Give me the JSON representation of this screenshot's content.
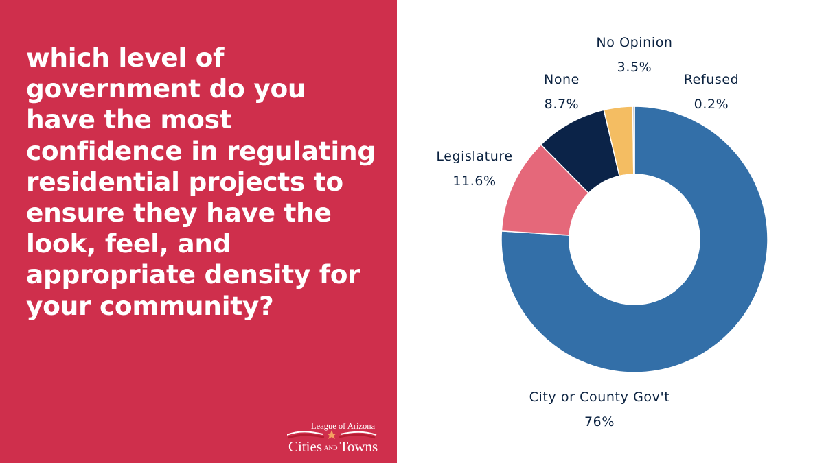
{
  "question": "which level of government do you have the most confidence in regulating residential projects to ensure they have the look, feel, and appropriate density for your community?",
  "logo": {
    "line1": "League of Arizona",
    "line2a": "Cities",
    "line2b": "AND",
    "line2c": "Towns"
  },
  "chart_data": {
    "type": "pie",
    "title": "",
    "hole": 0.49,
    "categories": [
      "City or County Gov't",
      "Legislature",
      "None",
      "No Opinion",
      "Refused"
    ],
    "values": [
      76,
      11.6,
      8.7,
      3.5,
      0.2
    ],
    "value_labels": [
      "76%",
      "11.6%",
      "8.7%",
      "3.5%",
      "0.2%"
    ],
    "colors": [
      "#336fa8",
      "#e5687a",
      "#0b2348",
      "#f4bd62",
      "#b2b2b2"
    ],
    "start": "12 o'clock, clockwise",
    "legend": "none",
    "label_placement": "outside"
  }
}
